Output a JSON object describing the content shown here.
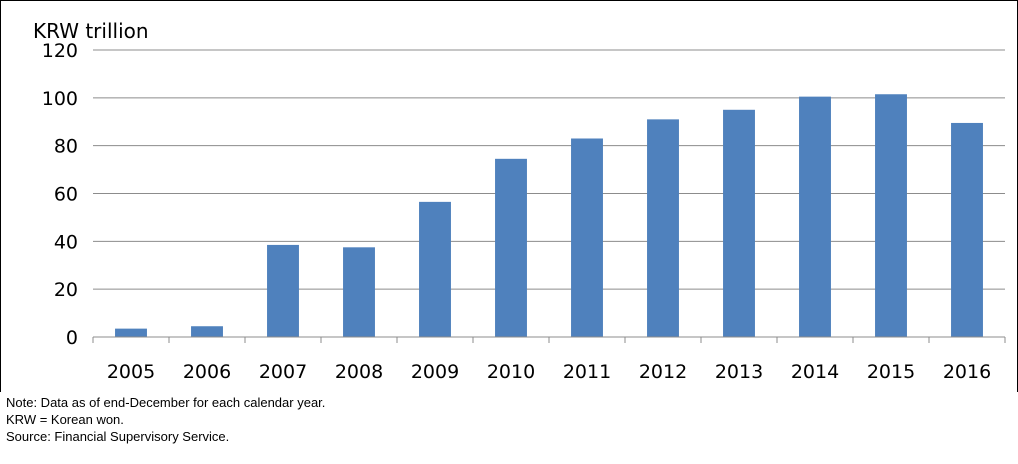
{
  "chart_data": {
    "type": "bar",
    "unit_label": "KRW trillion",
    "categories": [
      "2005",
      "2006",
      "2007",
      "2008",
      "2009",
      "2010",
      "2011",
      "2012",
      "2013",
      "2014",
      "2015",
      "2016"
    ],
    "series": [
      {
        "values": [
          3.5,
          4.5,
          38.5,
          37.5,
          56.5,
          74.5,
          83,
          91,
          95,
          100.5,
          101.5,
          89.5
        ],
        "color": "#4f81bd"
      }
    ],
    "ylim": [
      0,
      120
    ],
    "yticks": [
      0,
      20,
      40,
      60,
      80,
      100,
      120
    ],
    "grid": true
  },
  "notes": {
    "note": "Note: Data as of end-December for each calendar year.",
    "abbreviation": "KRW = Korean won.",
    "source": "Source: Financial Supervisory Service."
  }
}
